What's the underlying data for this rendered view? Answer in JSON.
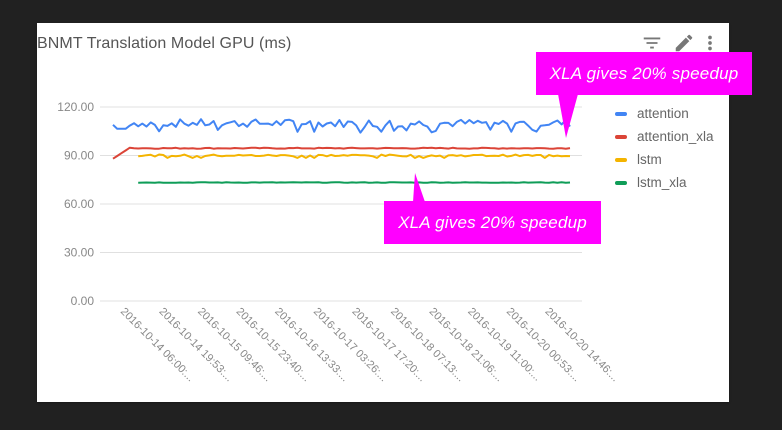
{
  "chart_data": {
    "type": "line",
    "title": "BNMT Translation Model GPU (ms)",
    "xlabel": "",
    "ylabel": "",
    "ylim": [
      0,
      120
    ],
    "y_ticks": [
      "120.00",
      "90.00",
      "60.00",
      "30.00",
      "0.00"
    ],
    "x_tick_labels": [
      "2016-10-14 06:00:...",
      "2016-10-14 19:53:...",
      "2016-10-15 09:46:...",
      "2016-10-15 23:40:...",
      "2016-10-16 13:33:...",
      "2016-10-17 03:26:...",
      "2016-10-17 17:20:...",
      "2016-10-18 07:13:...",
      "2016-10-18 21:06:...",
      "2016-10-19 11:00:...",
      "2016-10-20 00:53:...",
      "2016-10-20 14:46:..."
    ],
    "grid": true,
    "legend_position": "right",
    "series": [
      {
        "name": "attention",
        "color": "#4285f4",
        "approx_mean": 110,
        "range": [
          103,
          114
        ]
      },
      {
        "name": "attention_xla",
        "color": "#db4437",
        "approx_mean": 94,
        "range": [
          88,
          95
        ]
      },
      {
        "name": "lstm",
        "color": "#f4b400",
        "approx_mean": 90,
        "range": [
          88,
          91
        ]
      },
      {
        "name": "lstm_xla",
        "color": "#0f9d58",
        "approx_mean": 73,
        "range": [
          73,
          74
        ]
      }
    ],
    "annotations": [
      {
        "text": "XLA gives 20% speedup",
        "points_to": "attention vs attention_xla"
      },
      {
        "text": "XLA gives 20% speedup",
        "points_to": "lstm vs lstm_xla"
      }
    ]
  },
  "card": {
    "title": "BNMT Translation Model GPU (ms)",
    "toolbar": {
      "filter_icon": "filter-icon",
      "edit_icon": "pencil-icon",
      "more_icon": "more-vert-icon"
    }
  },
  "legend": [
    {
      "label": "attention",
      "color": "#4285f4"
    },
    {
      "label": "attention_xla",
      "color": "#db4437"
    },
    {
      "label": "lstm",
      "color": "#f4b400"
    },
    {
      "label": "lstm_xla",
      "color": "#0f9d58"
    }
  ],
  "callouts": {
    "top": "XLA gives 20% speedup",
    "bottom": "XLA gives 20% speedup",
    "color": "#ff00ff"
  }
}
